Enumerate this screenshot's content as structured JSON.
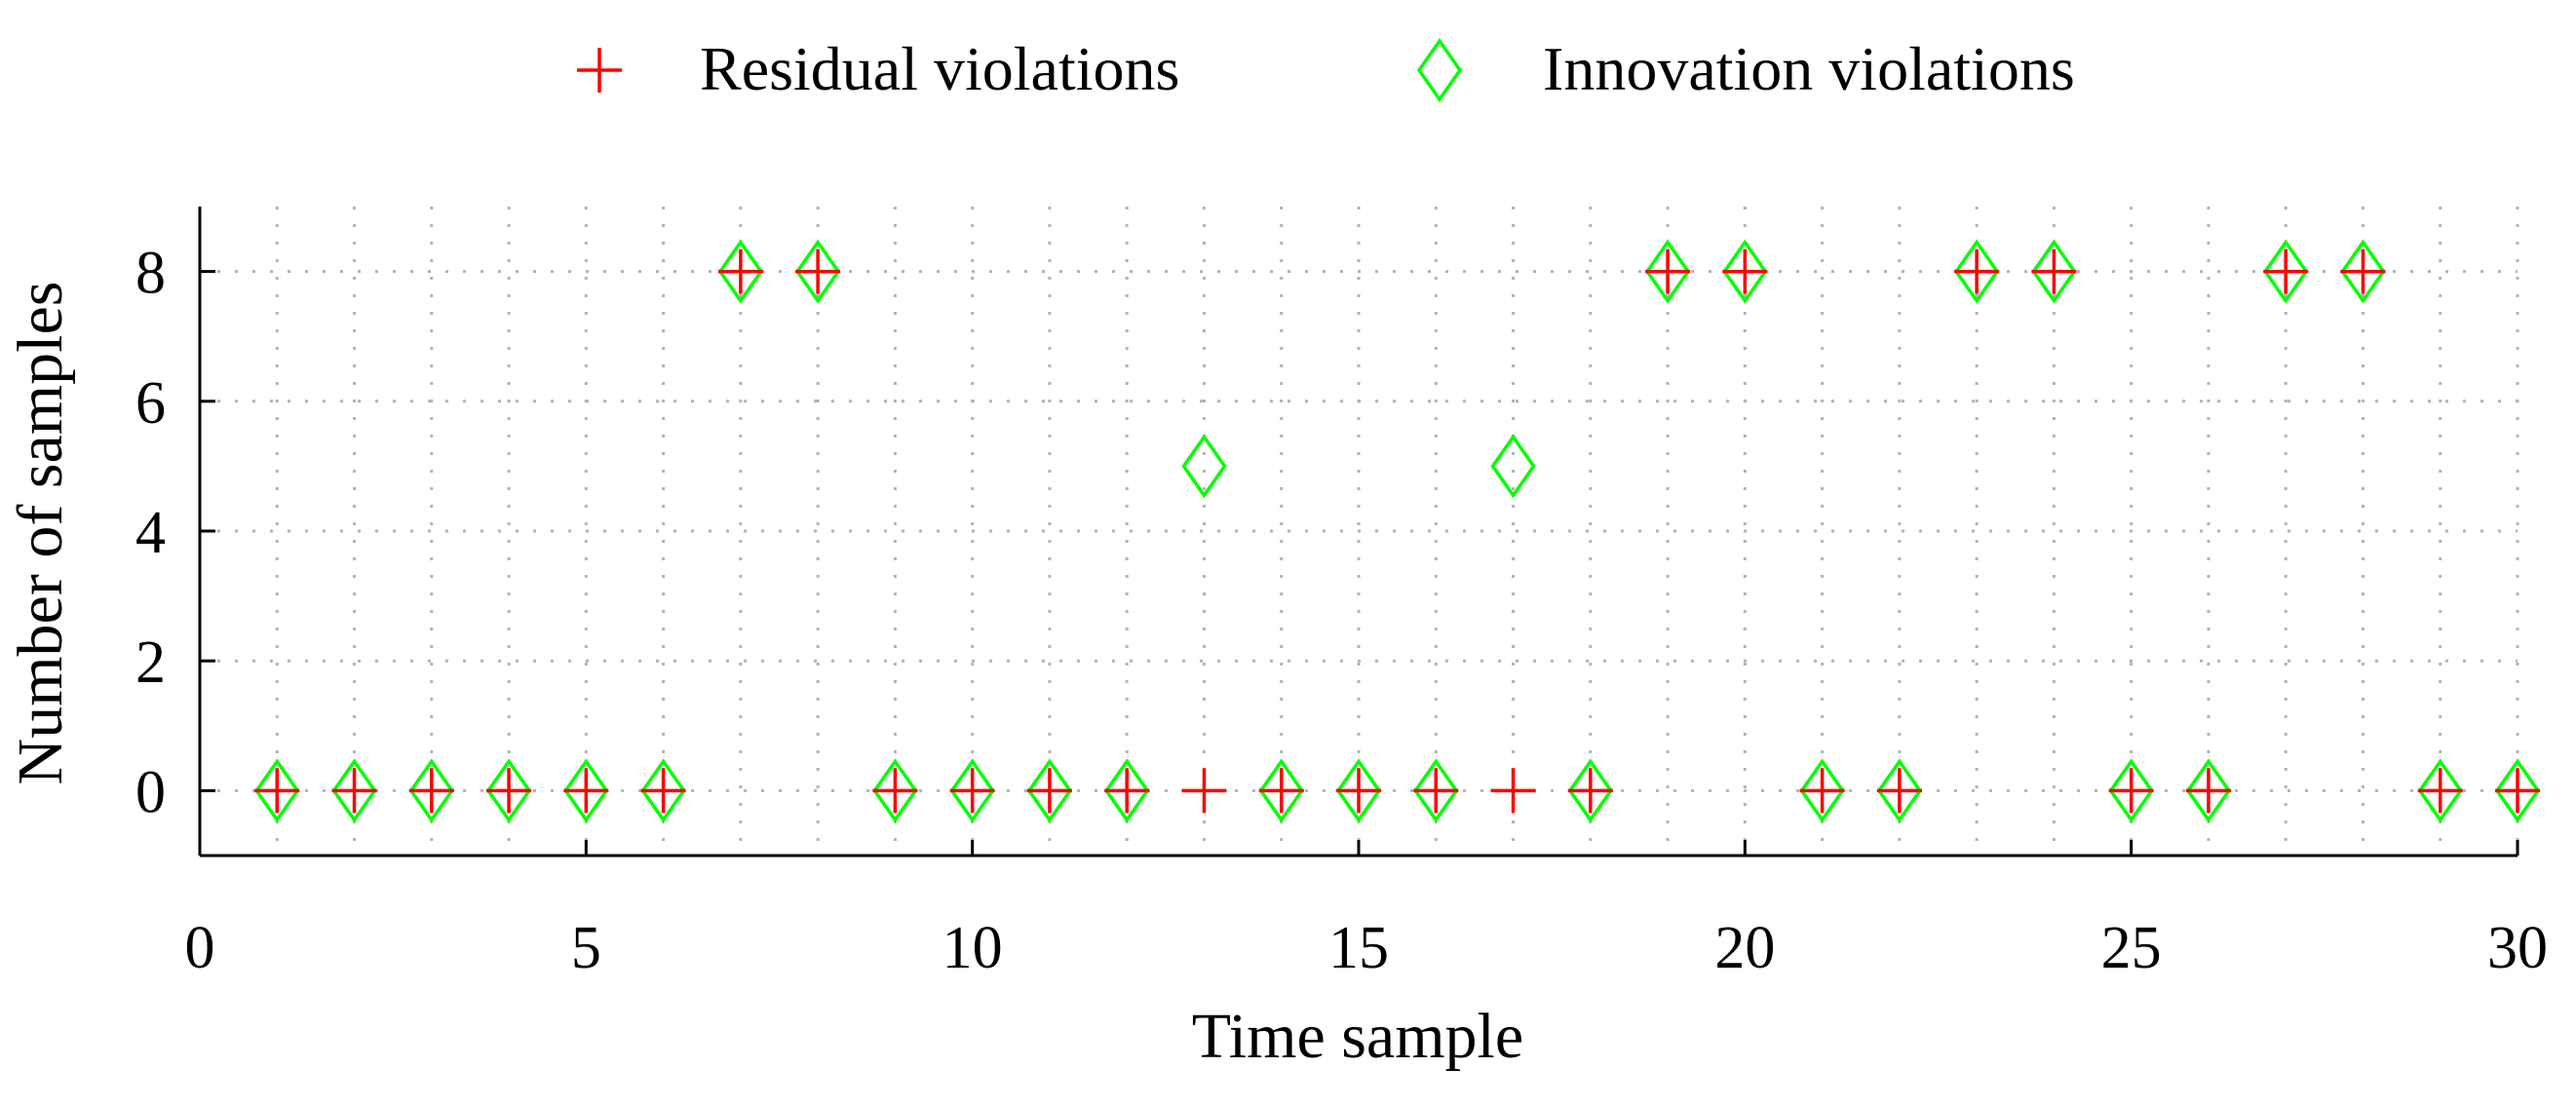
{
  "chart_data": {
    "type": "scatter",
    "title": "",
    "xlabel": "Time sample",
    "ylabel": "Number of samples",
    "xlim": [
      0,
      30
    ],
    "ylim": [
      -1,
      9
    ],
    "xticks": [
      0,
      5,
      10,
      15,
      20,
      25,
      30
    ],
    "yticks": [
      0,
      2,
      4,
      6,
      8
    ],
    "xtick_labels": [
      "0",
      "5",
      "10",
      "15",
      "20",
      "25",
      "30"
    ],
    "ytick_labels": [
      "0",
      "2",
      "4",
      "6",
      "8"
    ],
    "grid": true,
    "legend_position": "top-center",
    "series": [
      {
        "name": "Residual violations",
        "marker": "plus",
        "color": "#ff0000",
        "x": [
          1,
          2,
          3,
          4,
          5,
          6,
          7,
          8,
          9,
          10,
          11,
          12,
          13,
          14,
          15,
          16,
          17,
          18,
          19,
          20,
          21,
          22,
          23,
          24,
          25,
          26,
          27,
          28,
          29,
          30
        ],
        "y": [
          0,
          0,
          0,
          0,
          0,
          0,
          8,
          8,
          0,
          0,
          0,
          0,
          0,
          0,
          0,
          0,
          0,
          0,
          8,
          8,
          0,
          0,
          8,
          8,
          0,
          0,
          8,
          8,
          0,
          0
        ]
      },
      {
        "name": "Innovation violations",
        "marker": "diamond",
        "color": "#00ff00",
        "x": [
          1,
          2,
          3,
          4,
          5,
          6,
          7,
          8,
          9,
          10,
          11,
          12,
          13,
          14,
          15,
          16,
          17,
          18,
          19,
          20,
          21,
          22,
          23,
          24,
          25,
          26,
          27,
          28,
          29,
          30
        ],
        "y": [
          0,
          0,
          0,
          0,
          0,
          0,
          8,
          8,
          0,
          0,
          0,
          0,
          5,
          0,
          0,
          0,
          5,
          0,
          8,
          8,
          0,
          0,
          8,
          8,
          0,
          0,
          8,
          8,
          0,
          0
        ]
      }
    ]
  }
}
